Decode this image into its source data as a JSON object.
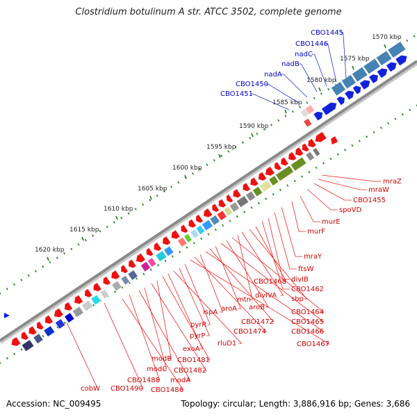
{
  "title": "Clostridium botulinum A str. ATCC 3502, complete genome",
  "footer": {
    "accession": "Accession: NC_009495",
    "summary": "Topology: circular; Length: 3,886,916 bp; Genes: 3,686"
  },
  "colors": {
    "backbone": "#8a8a8a",
    "tick": "#2a8a2a",
    "ruler_label": "#222222",
    "label_top": "#0000cc",
    "label_bottom": "#cc0000",
    "leader_top": "#2233cc",
    "leader_bottom": "#ee2222",
    "gene_forward": "#ee1111",
    "gene_reverse": "#1122dd"
  },
  "ruler": [
    {
      "label": "1570 kbp"
    },
    {
      "label": "1575 kbp"
    },
    {
      "label": "1580 kbp"
    },
    {
      "label": "1585 kbp"
    },
    {
      "label": "1590 kbp"
    },
    {
      "label": "1595 kbp"
    },
    {
      "label": "1600 kbp"
    },
    {
      "label": "1605 kbp"
    },
    {
      "label": "1610 kbp"
    },
    {
      "label": "1615 kbp"
    },
    {
      "label": "1620 kbp"
    }
  ],
  "gene_labels_top": [
    {
      "label": "CBO1445"
    },
    {
      "label": "CBO1446"
    },
    {
      "label": "nadC"
    },
    {
      "label": "nadB"
    },
    {
      "label": "nadA"
    },
    {
      "label": "CBO1450"
    },
    {
      "label": "CBO1451"
    }
  ],
  "gene_labels_bottom": [
    {
      "label": "mraZ"
    },
    {
      "label": "mraW"
    },
    {
      "label": "CBO1455"
    },
    {
      "label": "spoVD"
    },
    {
      "label": "murE"
    },
    {
      "label": "murF"
    },
    {
      "label": "mraY"
    },
    {
      "label": "ftsW"
    },
    {
      "label": "divIB"
    },
    {
      "label": "CBO1462"
    },
    {
      "label": "CBO1468"
    },
    {
      "label": "sbp"
    },
    {
      "label": "divIVA"
    },
    {
      "label": "mtn"
    },
    {
      "label": "CBO1464"
    },
    {
      "label": "aroB"
    },
    {
      "label": "CBO1465"
    },
    {
      "label": "aroA"
    },
    {
      "label": "CBO1472"
    },
    {
      "label": "CBO1466"
    },
    {
      "label": "ispA"
    },
    {
      "label": "CBO1474"
    },
    {
      "label": "CBO1467"
    },
    {
      "label": "pyrR"
    },
    {
      "label": "pyrP"
    },
    {
      "label": "rluD1"
    },
    {
      "label": "exoA"
    },
    {
      "label": "CBO1481"
    },
    {
      "label": "modB"
    },
    {
      "label": "CBO1482"
    },
    {
      "label": "modC"
    },
    {
      "label": "modA"
    },
    {
      "label": "CBO1488"
    },
    {
      "label": "CBO1486"
    },
    {
      "label": "CBO1490"
    },
    {
      "label": "cobW"
    }
  ]
}
